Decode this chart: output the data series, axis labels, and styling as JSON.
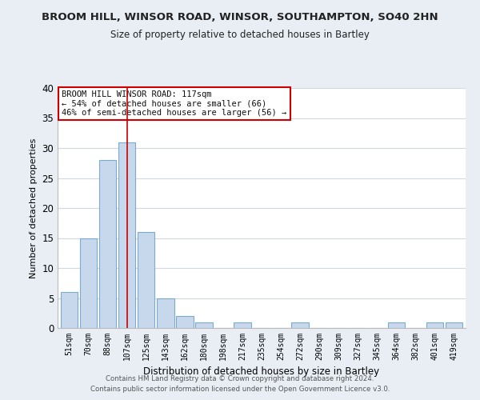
{
  "title": "BROOM HILL, WINSOR ROAD, WINSOR, SOUTHAMPTON, SO40 2HN",
  "subtitle": "Size of property relative to detached houses in Bartley",
  "xlabel": "Distribution of detached houses by size in Bartley",
  "ylabel": "Number of detached properties",
  "categories": [
    "51sqm",
    "70sqm",
    "88sqm",
    "107sqm",
    "125sqm",
    "143sqm",
    "162sqm",
    "180sqm",
    "198sqm",
    "217sqm",
    "235sqm",
    "254sqm",
    "272sqm",
    "290sqm",
    "309sqm",
    "327sqm",
    "345sqm",
    "364sqm",
    "382sqm",
    "401sqm",
    "419sqm"
  ],
  "values": [
    6,
    15,
    28,
    31,
    16,
    5,
    2,
    1,
    0,
    1,
    0,
    0,
    1,
    0,
    0,
    0,
    0,
    1,
    0,
    1,
    1
  ],
  "bar_color": "#c8d8ec",
  "bar_edge_color": "#7aaace",
  "ylim": [
    0,
    40
  ],
  "yticks": [
    0,
    5,
    10,
    15,
    20,
    25,
    30,
    35,
    40
  ],
  "annotation_title": "BROOM HILL WINSOR ROAD: 117sqm",
  "annotation_line1": "← 54% of detached houses are smaller (66)",
  "annotation_line2": "46% of semi-detached houses are larger (56) →",
  "annotation_box_color": "#ffffff",
  "annotation_box_edge": "#cc0000",
  "marker_bar_index": 3,
  "footer1": "Contains HM Land Registry data © Crown copyright and database right 2024.",
  "footer2": "Contains public sector information licensed under the Open Government Licence v3.0.",
  "fig_background_color": "#e8eef4",
  "plot_background_color": "#ffffff",
  "grid_color": "#d0d8e0"
}
